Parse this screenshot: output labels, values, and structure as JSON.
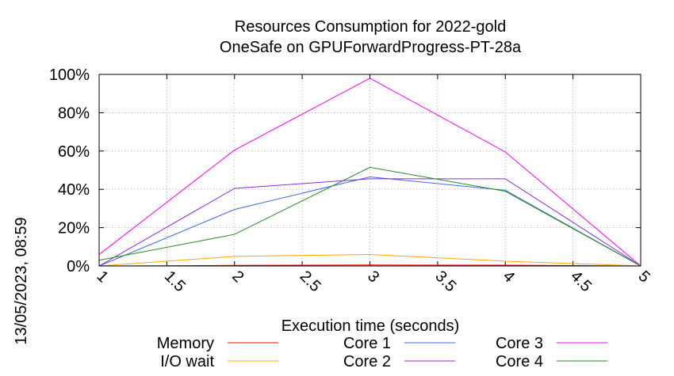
{
  "chart_data": {
    "type": "line",
    "title": "Resources Consumption for 2022-gold",
    "subtitle": "OneSafe on GPUForwardProgress-PT-28a",
    "xlabel": "Execution time (seconds)",
    "ylabel": "",
    "side_label": "13/05/2023, 08:59",
    "x": [
      1,
      2,
      3,
      4,
      5
    ],
    "xlim": [
      1,
      5
    ],
    "ylim": [
      0,
      100
    ],
    "x_ticks": [
      "1",
      "1.5",
      "2",
      "2.5",
      "3",
      "3.5",
      "4",
      "4.5",
      "5"
    ],
    "y_ticks": [
      "0%",
      "20%",
      "40%",
      "60%",
      "80%",
      "100%"
    ],
    "grid": true,
    "legend_position": "bottom",
    "series": [
      {
        "name": "Memory",
        "color": "#ff0000",
        "values": [
          0,
          0.3,
          0.5,
          0.4,
          0
        ]
      },
      {
        "name": "I/O wait",
        "color": "#ffa500",
        "values": [
          0,
          5,
          6,
          2.5,
          0
        ]
      },
      {
        "name": "Core 1",
        "color": "#4169e1",
        "values": [
          0,
          29.5,
          46.5,
          39.5,
          0
        ]
      },
      {
        "name": "Core 2",
        "color": "#8a2be2",
        "values": [
          0,
          40.5,
          45.5,
          45.5,
          0
        ]
      },
      {
        "name": "Core 3",
        "color": "#ff00ff",
        "values": [
          6,
          60.5,
          98,
          59.5,
          0
        ]
      },
      {
        "name": "Core 4",
        "color": "#228b22",
        "values": [
          3,
          16.5,
          51.5,
          39,
          0
        ]
      }
    ]
  }
}
